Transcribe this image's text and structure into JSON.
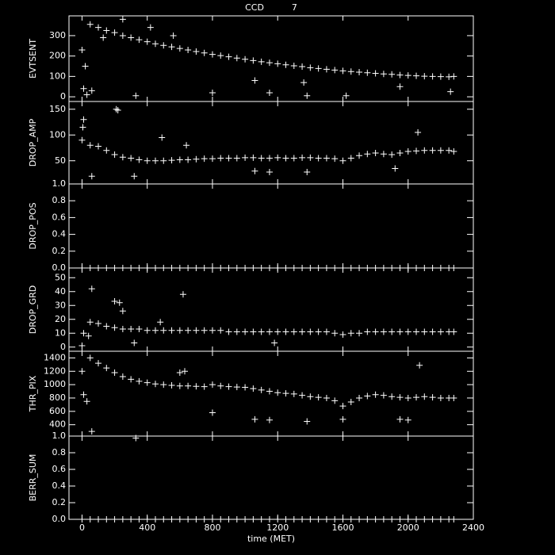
{
  "chart_data": [
    {
      "type": "scatter",
      "title": "CCD          7",
      "ylabel": "EVTSENT",
      "color": "#ffffff",
      "xlim": [
        -80,
        2400
      ],
      "xticks": [
        0,
        400,
        800,
        1200,
        1600,
        2000,
        2400
      ],
      "ylim": [
        -23,
        397
      ],
      "yticks": [
        0,
        100,
        200,
        300
      ],
      "x": [
        0,
        50,
        100,
        150,
        200,
        250,
        300,
        350,
        400,
        450,
        500,
        550,
        600,
        650,
        700,
        750,
        800,
        850,
        900,
        950,
        1000,
        1050,
        1100,
        1150,
        1200,
        1250,
        1300,
        1350,
        1400,
        1450,
        1500,
        1550,
        1600,
        1650,
        1700,
        1750,
        1800,
        1850,
        1900,
        1950,
        2000,
        2050,
        2100,
        2150,
        2200,
        2250,
        2280,
        10,
        20,
        30,
        60,
        130,
        250,
        330,
        420,
        560,
        800,
        1060,
        1150,
        1360,
        1380,
        1620,
        1950,
        2260
      ],
      "values": [
        230,
        355,
        340,
        325,
        315,
        300,
        290,
        280,
        270,
        260,
        252,
        245,
        237,
        230,
        222,
        215,
        208,
        202,
        196,
        190,
        184,
        178,
        172,
        167,
        162,
        157,
        152,
        148,
        143,
        139,
        135,
        131,
        127,
        124,
        121,
        118,
        115,
        112,
        110,
        107,
        105,
        103,
        101,
        100,
        99,
        98,
        100,
        40,
        150,
        10,
        30,
        290,
        380,
        5,
        340,
        300,
        20,
        80,
        20,
        70,
        5,
        5,
        50,
        25
      ]
    },
    {
      "type": "scatter",
      "ylabel": "DROP_AMP",
      "color": "#ffffff",
      "xlim": [
        -80,
        2400
      ],
      "xticks": [
        0,
        400,
        800,
        1200,
        1600,
        2000,
        2400
      ],
      "ylim": [
        5,
        165
      ],
      "yticks": [
        50,
        100,
        150
      ],
      "x": [
        0,
        50,
        100,
        150,
        200,
        250,
        300,
        350,
        400,
        450,
        500,
        550,
        600,
        650,
        700,
        750,
        800,
        850,
        900,
        950,
        1000,
        1050,
        1100,
        1150,
        1200,
        1250,
        1300,
        1350,
        1400,
        1450,
        1500,
        1550,
        1600,
        1650,
        1700,
        1750,
        1800,
        1850,
        1900,
        1950,
        2000,
        2050,
        2100,
        2150,
        2200,
        2250,
        2280,
        5,
        10,
        60,
        210,
        220,
        320,
        490,
        640,
        1060,
        1150,
        1380,
        1920,
        2060
      ],
      "values": [
        90,
        80,
        78,
        70,
        62,
        57,
        55,
        52,
        50,
        50,
        50,
        51,
        52,
        52,
        53,
        54,
        54,
        55,
        55,
        55,
        56,
        56,
        55,
        55,
        56,
        55,
        55,
        56,
        56,
        55,
        55,
        54,
        50,
        55,
        60,
        63,
        65,
        63,
        62,
        65,
        68,
        69,
        70,
        70,
        70,
        70,
        68,
        115,
        130,
        20,
        150,
        148,
        20,
        95,
        80,
        30,
        28,
        28,
        35,
        105
      ]
    },
    {
      "type": "scatter",
      "ylabel": "DROP_POS",
      "color": "#ffffff",
      "xlim": [
        -80,
        2400
      ],
      "xticks": [
        0,
        400,
        800,
        1200,
        1600,
        2000,
        2400
      ],
      "ylim": [
        0,
        1
      ],
      "yticks": [
        {
          "value": 0,
          "label": "0.0"
        },
        {
          "value": 0.2,
          "label": "0.2"
        },
        {
          "value": 0.4,
          "label": "0.4"
        },
        {
          "value": 0.6,
          "label": "0.6"
        },
        {
          "value": 0.8,
          "label": "0.8"
        },
        {
          "value": 1,
          "label": "1.0"
        }
      ],
      "x": [
        0,
        50,
        100,
        150,
        200,
        250,
        300,
        350,
        400,
        450,
        500,
        550,
        600,
        650,
        700,
        750,
        800,
        850,
        900,
        950,
        1000,
        1050,
        1100,
        1150,
        1200,
        1250,
        1300,
        1350,
        1400,
        1450,
        1500,
        1550,
        1600,
        1650,
        1700,
        1750,
        1800,
        1850,
        1900,
        1950,
        2000,
        2050,
        2100,
        2150,
        2200,
        2250,
        2280
      ],
      "values": [
        0,
        0,
        0,
        0,
        0,
        0,
        0,
        0,
        0,
        0,
        0,
        0,
        0,
        0,
        0,
        0,
        0,
        0,
        0,
        0,
        0,
        0,
        0,
        0,
        0,
        0,
        0,
        0,
        0,
        0,
        0,
        0,
        0,
        0,
        0,
        0,
        0,
        0,
        0,
        0,
        0,
        0,
        0,
        0,
        0,
        0,
        0
      ]
    },
    {
      "type": "scatter",
      "ylabel": "DROP_GRD",
      "color": "#ffffff",
      "xlim": [
        -80,
        2400
      ],
      "xticks": [
        0,
        400,
        800,
        1200,
        1600,
        2000,
        2400
      ],
      "ylim": [
        -3,
        57
      ],
      "yticks": [
        0,
        10,
        20,
        30,
        40,
        50
      ],
      "x": [
        0,
        50,
        100,
        150,
        200,
        250,
        300,
        350,
        400,
        450,
        500,
        550,
        600,
        650,
        700,
        750,
        800,
        850,
        900,
        950,
        1000,
        1050,
        1100,
        1150,
        1200,
        1250,
        1300,
        1350,
        1400,
        1450,
        1500,
        1550,
        1600,
        1650,
        1700,
        1750,
        1800,
        1850,
        1900,
        1950,
        2000,
        2050,
        2100,
        2150,
        2200,
        2250,
        2280,
        10,
        40,
        60,
        200,
        230,
        250,
        320,
        480,
        620,
        1180
      ],
      "values": [
        1,
        18,
        17,
        15,
        14,
        13,
        13,
        13,
        12,
        12,
        12,
        12,
        12,
        12,
        12,
        12,
        12,
        12,
        11,
        11,
        11,
        11,
        11,
        11,
        11,
        11,
        11,
        11,
        11,
        11,
        11,
        10,
        9,
        10,
        10,
        11,
        11,
        11,
        11,
        11,
        11,
        11,
        11,
        11,
        11,
        11,
        11,
        10,
        8,
        42,
        33,
        32,
        26,
        3,
        18,
        38,
        3
      ]
    },
    {
      "type": "scatter",
      "ylabel": "THR_PIX",
      "color": "#ffffff",
      "xlim": [
        -80,
        2400
      ],
      "xticks": [
        0,
        400,
        800,
        1200,
        1600,
        2000,
        2400
      ],
      "ylim": [
        230,
        1500
      ],
      "yticks": [
        400,
        600,
        800,
        1000,
        1200,
        1400
      ],
      "x": [
        0,
        50,
        100,
        150,
        200,
        250,
        300,
        350,
        400,
        450,
        500,
        550,
        600,
        650,
        700,
        750,
        800,
        850,
        900,
        950,
        1000,
        1050,
        1100,
        1150,
        1200,
        1250,
        1300,
        1350,
        1400,
        1450,
        1500,
        1550,
        1600,
        1650,
        1700,
        1750,
        1800,
        1850,
        1900,
        1950,
        2000,
        2050,
        2100,
        2150,
        2200,
        2250,
        2280,
        10,
        30,
        60,
        330,
        600,
        630,
        800,
        1060,
        1150,
        1380,
        1600,
        1950,
        2000,
        2070
      ],
      "values": [
        1200,
        1400,
        1320,
        1250,
        1180,
        1120,
        1080,
        1050,
        1030,
        1010,
        1000,
        990,
        980,
        980,
        975,
        970,
        1000,
        980,
        970,
        965,
        960,
        940,
        920,
        900,
        880,
        870,
        860,
        840,
        820,
        810,
        800,
        760,
        680,
        740,
        800,
        830,
        850,
        840,
        820,
        810,
        800,
        810,
        820,
        810,
        800,
        800,
        800,
        850,
        750,
        300,
        200,
        1180,
        1200,
        580,
        480,
        470,
        450,
        480,
        480,
        470,
        1290
      ]
    },
    {
      "type": "scatter",
      "ylabel": "BERR_SUM",
      "xlabel": "time (MET)",
      "color": "#ffffff",
      "xlim": [
        -80,
        2400
      ],
      "xticks": [
        0,
        400,
        800,
        1200,
        1600,
        2000,
        2400
      ],
      "ylim": [
        0,
        1
      ],
      "yticks": [
        {
          "value": 0,
          "label": "0.0"
        },
        {
          "value": 0.2,
          "label": "0.2"
        },
        {
          "value": 0.4,
          "label": "0.4"
        },
        {
          "value": 0.6,
          "label": "0.6"
        },
        {
          "value": 0.8,
          "label": "0.8"
        },
        {
          "value": 1,
          "label": "1.0"
        }
      ],
      "x": [
        0,
        50,
        100,
        150,
        200,
        250,
        300,
        350,
        400,
        450,
        500,
        550,
        600,
        650,
        700,
        750,
        800,
        850,
        900,
        950,
        1000,
        1050,
        1100,
        1150,
        1200,
        1250,
        1300,
        1350,
        1400,
        1450,
        1500,
        1550,
        1600,
        1650,
        1700,
        1750,
        1800,
        1850,
        1900,
        1950,
        2000,
        2050,
        2100,
        2150,
        2200,
        2250,
        2280
      ],
      "values": [
        0,
        0,
        0,
        0,
        0,
        0,
        0,
        0,
        0,
        0,
        0,
        0,
        0,
        0,
        0,
        0,
        0,
        0,
        0,
        0,
        0,
        0,
        0,
        0,
        0,
        0,
        0,
        0,
        0,
        0,
        0,
        0,
        0,
        0,
        0,
        0,
        0,
        0,
        0,
        0,
        0,
        0,
        0,
        0,
        0,
        0,
        0
      ]
    }
  ]
}
